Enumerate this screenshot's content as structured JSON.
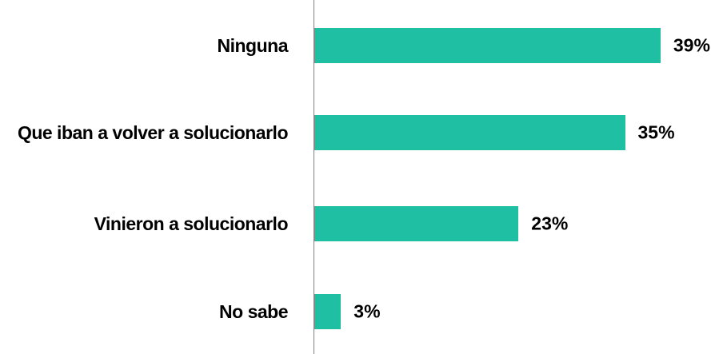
{
  "chart_data": {
    "type": "bar",
    "orientation": "horizontal",
    "categories": [
      "Ninguna",
      "Que iban a volver a solucionarlo",
      "Vinieron a solucionarlo",
      "No sabe"
    ],
    "values": [
      39,
      35,
      23,
      3
    ],
    "value_labels": [
      "39%",
      "35%",
      "23%",
      "3%"
    ],
    "color": "#1fbfa3"
  }
}
